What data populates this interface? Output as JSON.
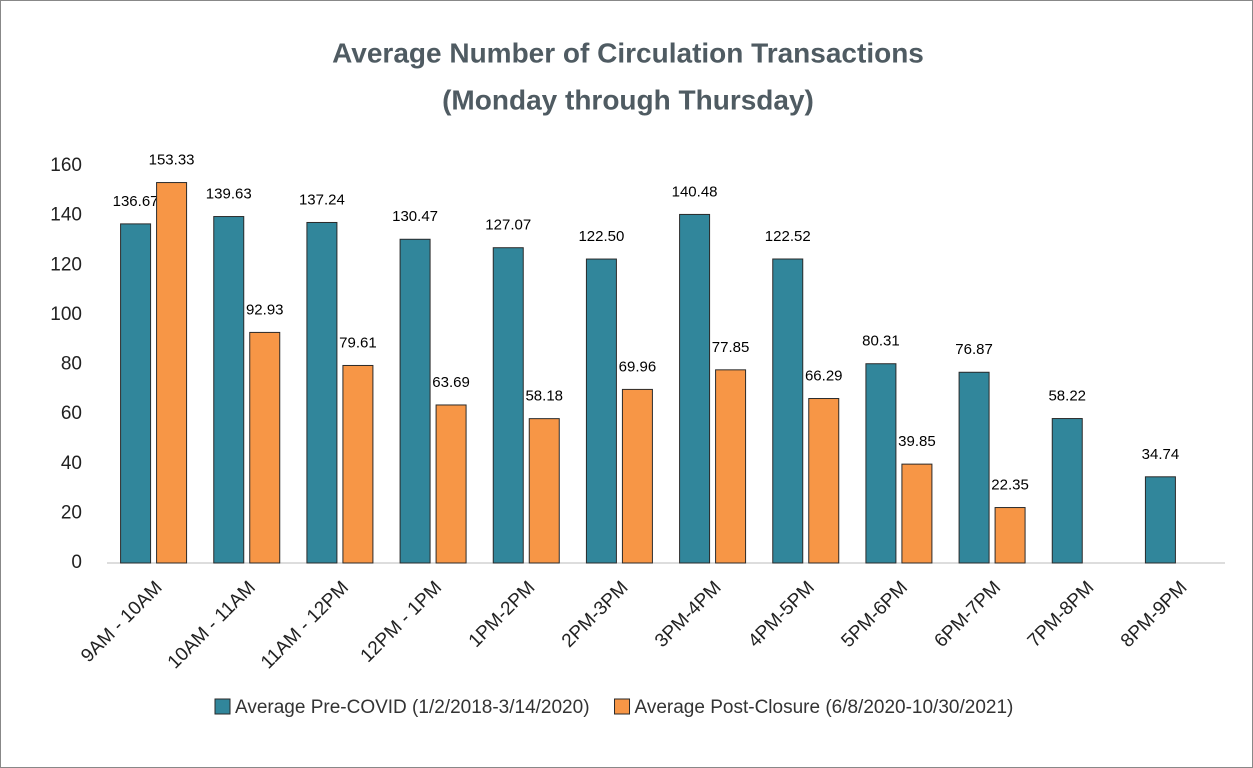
{
  "chart_data": {
    "type": "bar",
    "title": "Average Number of Circulation Transactions",
    "subtitle": "(Monday through Thursday)",
    "categories": [
      "9AM - 10AM",
      "10AM - 11AM",
      "11AM - 12PM",
      "12PM - 1PM",
      "1PM-2PM",
      "2PM-3PM",
      "3PM-4PM",
      "4PM-5PM",
      "5PM-6PM",
      "6PM-7PM",
      "7PM-8PM",
      "8PM-9PM"
    ],
    "series": [
      {
        "name": "Average Pre-COVID (1/2/2018-3/14/2020)",
        "color": "#31869b",
        "values": [
          136.67,
          139.63,
          137.24,
          130.47,
          127.07,
          122.5,
          140.48,
          122.52,
          80.31,
          76.87,
          58.22,
          34.74
        ],
        "value_labels": [
          "136.67",
          "139.63",
          "137.24",
          "130.47",
          "127.07",
          "122.50",
          "140.48",
          "122.52",
          "80.31",
          "76.87",
          "58.22",
          "34.74"
        ]
      },
      {
        "name": "Average Post-Closure (6/8/2020-10/30/2021)",
        "color": "#f79646",
        "values": [
          153.33,
          92.93,
          79.61,
          63.69,
          58.18,
          69.96,
          77.85,
          66.29,
          39.85,
          22.35,
          null,
          null
        ],
        "value_labels": [
          "153.33",
          "92.93",
          "79.61",
          "63.69",
          "58.18",
          "69.96",
          "77.85",
          "66.29",
          "39.85",
          "22.35",
          null,
          null
        ]
      }
    ],
    "ylim": [
      0,
      160
    ],
    "yticks": [
      0,
      20,
      40,
      60,
      80,
      100,
      120,
      140,
      160
    ],
    "grid": false,
    "legend": "bottom"
  }
}
